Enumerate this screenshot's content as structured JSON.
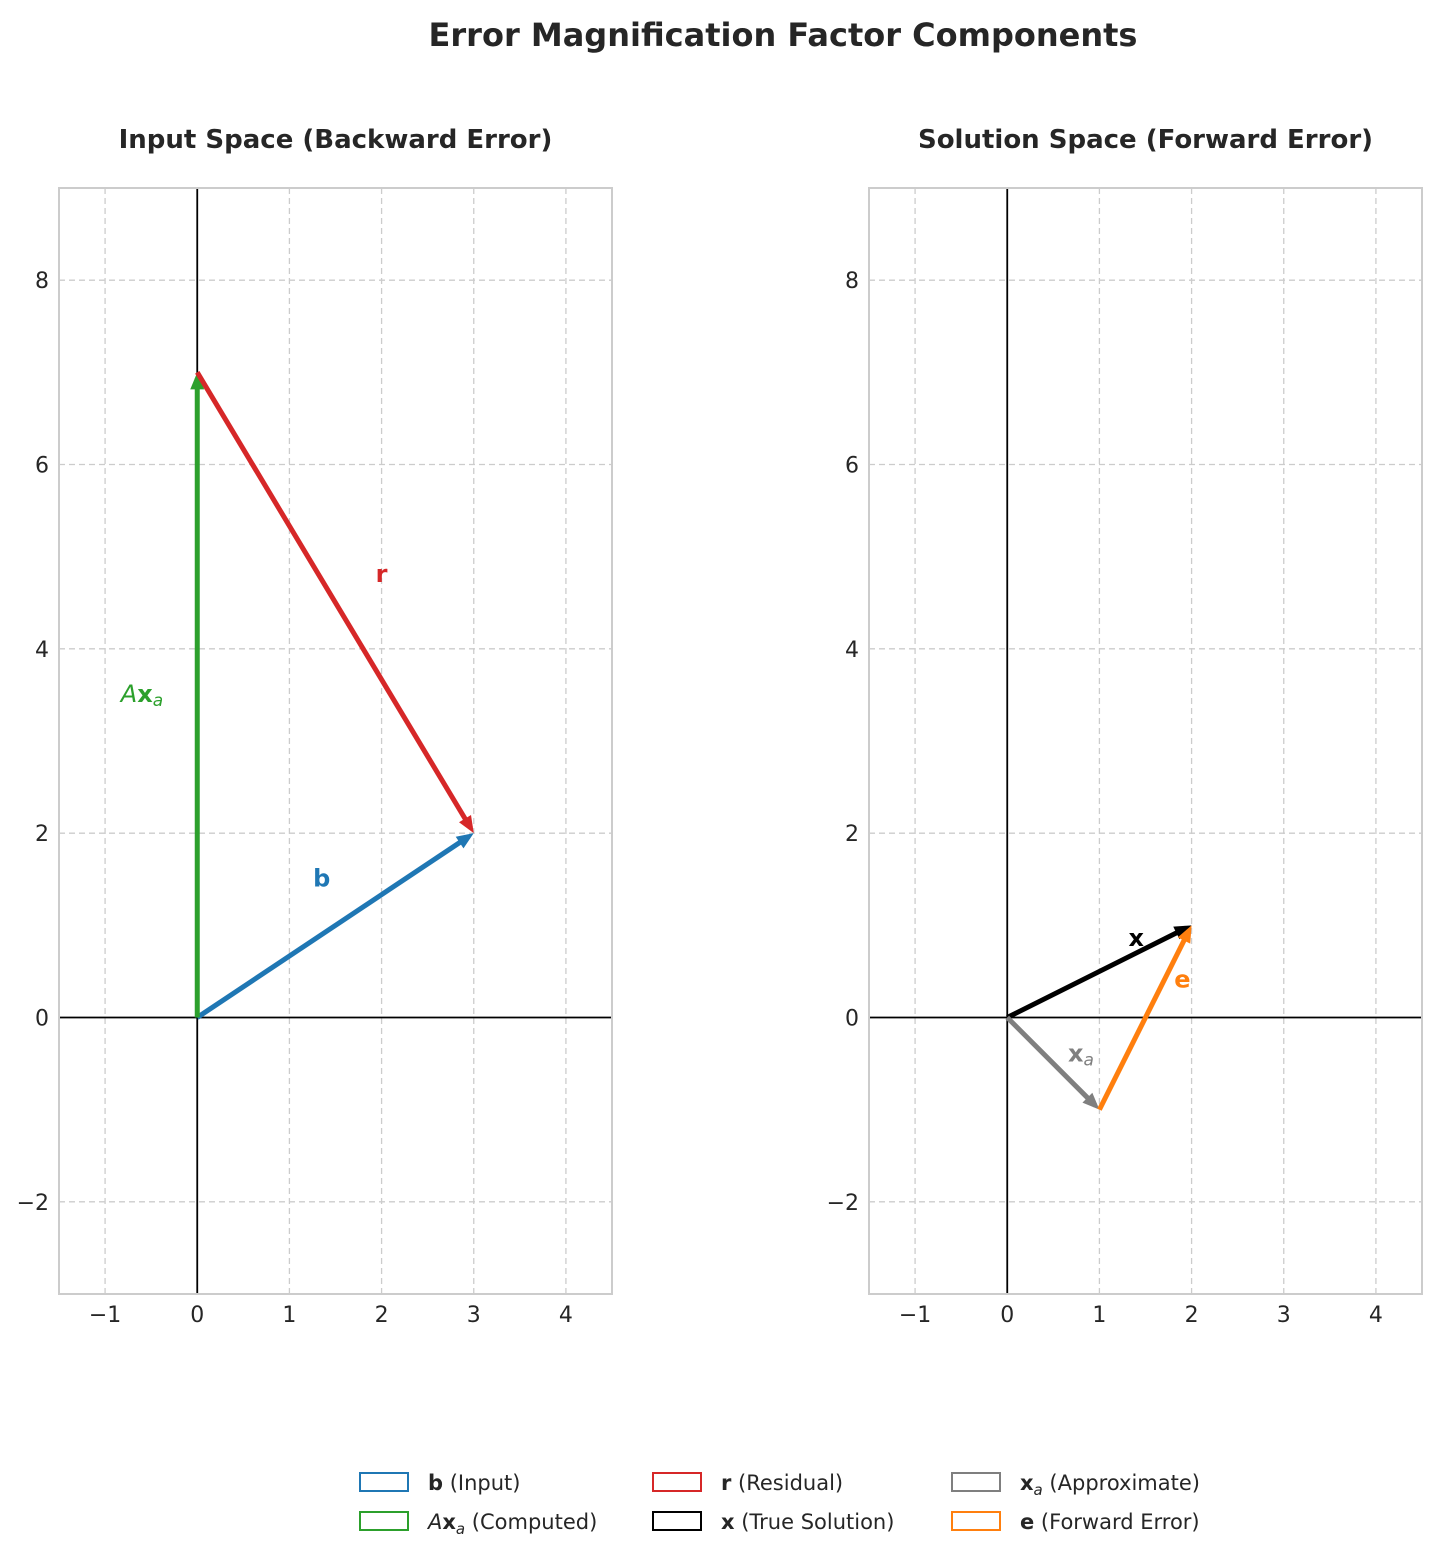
{
  "title": "Error Magnification Factor Components",
  "chart_data": [
    {
      "type": "vector",
      "title": "Input Space (Backward Error)",
      "xlim": [
        -1.5,
        4.5
      ],
      "ylim": [
        -3,
        9
      ],
      "xticks": [
        -1,
        0,
        1,
        2,
        3,
        4
      ],
      "yticks": [
        -2,
        0,
        2,
        4,
        6,
        8
      ],
      "grid": true,
      "vectors": [
        {
          "id": "b",
          "from": [
            0,
            0
          ],
          "to": [
            3,
            2
          ],
          "color": "#1f77b4",
          "label": {
            "base": "b",
            "sub": "",
            "style": "bold",
            "at": [
              1.35,
              1.5
            ]
          }
        },
        {
          "id": "Axa",
          "from": [
            0,
            0
          ],
          "to": [
            0,
            7
          ],
          "color": "#2ca02c",
          "label": {
            "base": "A",
            "bold": "x",
            "sub": "a",
            "style": "italic-bold",
            "at": [
              -0.6,
              3.5
            ]
          }
        },
        {
          "id": "r",
          "from": [
            0,
            7
          ],
          "to": [
            3,
            2
          ],
          "color": "#d62728",
          "label": {
            "base": "r",
            "sub": "",
            "style": "bold",
            "at": [
              2.0,
              4.8
            ]
          }
        }
      ]
    },
    {
      "type": "vector",
      "title": "Solution Space (Forward Error)",
      "xlim": [
        -1.5,
        4.5
      ],
      "ylim": [
        -3,
        9
      ],
      "xticks": [
        -1,
        0,
        1,
        2,
        3,
        4
      ],
      "yticks": [
        -2,
        0,
        2,
        4,
        6,
        8
      ],
      "grid": true,
      "vectors": [
        {
          "id": "x",
          "from": [
            0,
            0
          ],
          "to": [
            2,
            1
          ],
          "color": "#000000",
          "label": {
            "base": "x",
            "sub": "",
            "style": "bold",
            "at": [
              1.4,
              0.85
            ]
          }
        },
        {
          "id": "xa",
          "from": [
            0,
            0
          ],
          "to": [
            1,
            -1
          ],
          "color": "#7f7f7f",
          "label": {
            "base": "x",
            "sub": "a",
            "style": "bold",
            "at": [
              0.8,
              -0.4
            ]
          }
        },
        {
          "id": "e",
          "from": [
            1,
            -1
          ],
          "to": [
            2,
            1
          ],
          "color": "#ff7f0e",
          "label": {
            "base": "e",
            "sub": "",
            "style": "bold",
            "at": [
              1.9,
              0.4
            ]
          }
        }
      ]
    }
  ],
  "legend": {
    "placement": "bottom-center",
    "columns": [
      [
        {
          "color": "#1f77b4",
          "sym": "b",
          "sym_style": "bold",
          "sub": "",
          "text": " (Input)"
        },
        {
          "color": "#2ca02c",
          "sym": "A",
          "sym_bold": "x",
          "sym_style": "italic-bold",
          "sub": "a",
          "text": " (Computed)"
        }
      ],
      [
        {
          "color": "#d62728",
          "sym": "r",
          "sym_style": "bold",
          "sub": "",
          "text": " (Residual)"
        },
        {
          "color": "#000000",
          "sym": "x",
          "sym_style": "bold",
          "sub": "",
          "text": " (True Solution)"
        }
      ],
      [
        {
          "color": "#7f7f7f",
          "sym": "x",
          "sym_style": "bold",
          "sub": "a",
          "text": " (Approximate)"
        },
        {
          "color": "#ff7f0e",
          "sym": "e",
          "sym_style": "bold",
          "sub": "",
          "text": " (Forward Error)"
        }
      ]
    ]
  }
}
